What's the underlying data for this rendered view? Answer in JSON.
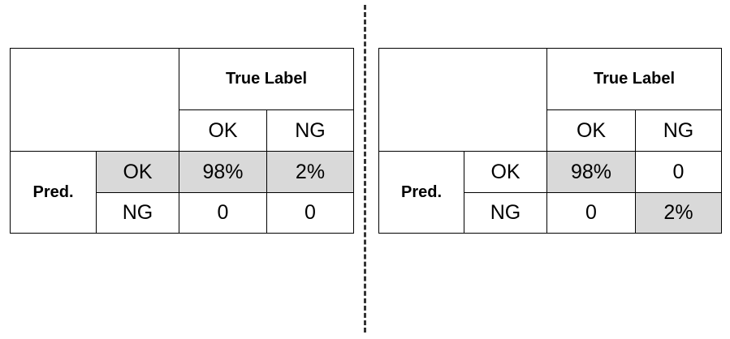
{
  "matrices": [
    {
      "header": "True Label",
      "columns": [
        "OK",
        "NG"
      ],
      "row_header": "Pred.",
      "rows": [
        {
          "label": "OK",
          "values": [
            "98%",
            "2%"
          ]
        },
        {
          "label": "NG",
          "values": [
            "0",
            "0"
          ]
        }
      ]
    },
    {
      "header": "True Label",
      "columns": [
        "OK",
        "NG"
      ],
      "row_header": "Pred.",
      "rows": [
        {
          "label": "OK",
          "values": [
            "98%",
            "0"
          ]
        },
        {
          "label": "NG",
          "values": [
            "0",
            "2%"
          ]
        }
      ]
    }
  ],
  "colors": {
    "highlight": "#d9d9d9",
    "border": "#000000",
    "divider": "#333333"
  }
}
